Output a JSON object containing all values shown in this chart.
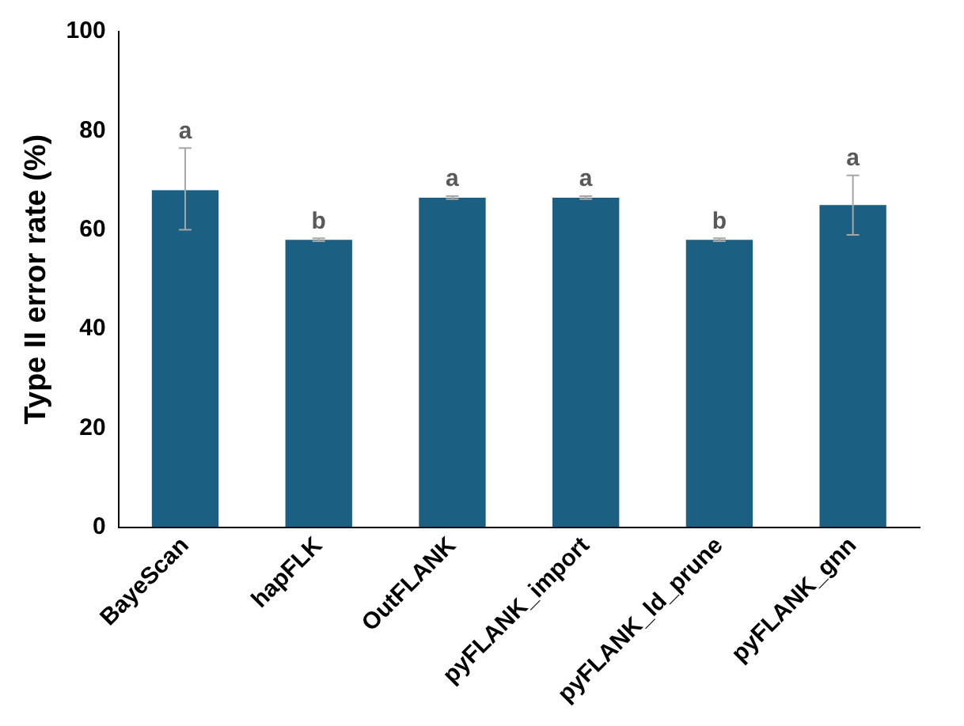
{
  "chart_data": {
    "type": "bar",
    "ylabel": "Type II error rate (%)",
    "categories": [
      "BayeScan",
      "hapFLK",
      "OutFLANK",
      "pyFLANK_import",
      "pyFLANK_ld_prune",
      "pyFLANK_gnn"
    ],
    "values": [
      68,
      58,
      66.5,
      66.5,
      58,
      65
    ],
    "errors": [
      [
        60,
        76.5
      ],
      0.3,
      0.3,
      0.3,
      0.3,
      [
        59,
        71
      ]
    ],
    "color": "#1b5f83",
    "ylim": [
      0,
      100
    ],
    "yticks": [
      0,
      20,
      40,
      60,
      80,
      100
    ],
    "grid": false,
    "legend": false,
    "annotations": [
      {
        "text": "a",
        "x": "BayeScan",
        "y": 76.5
      },
      {
        "text": "b",
        "x": "hapFLK",
        "y": 58.3
      },
      {
        "text": "a",
        "x": "OutFLANK",
        "y": 66.8
      },
      {
        "text": "a",
        "x": "pyFLANK_import",
        "y": 66.8
      },
      {
        "text": "b",
        "x": "pyFLANK_ld_prune",
        "y": 58.3
      },
      {
        "text": "a",
        "x": "pyFLANK_gnn",
        "y": 71
      }
    ]
  }
}
